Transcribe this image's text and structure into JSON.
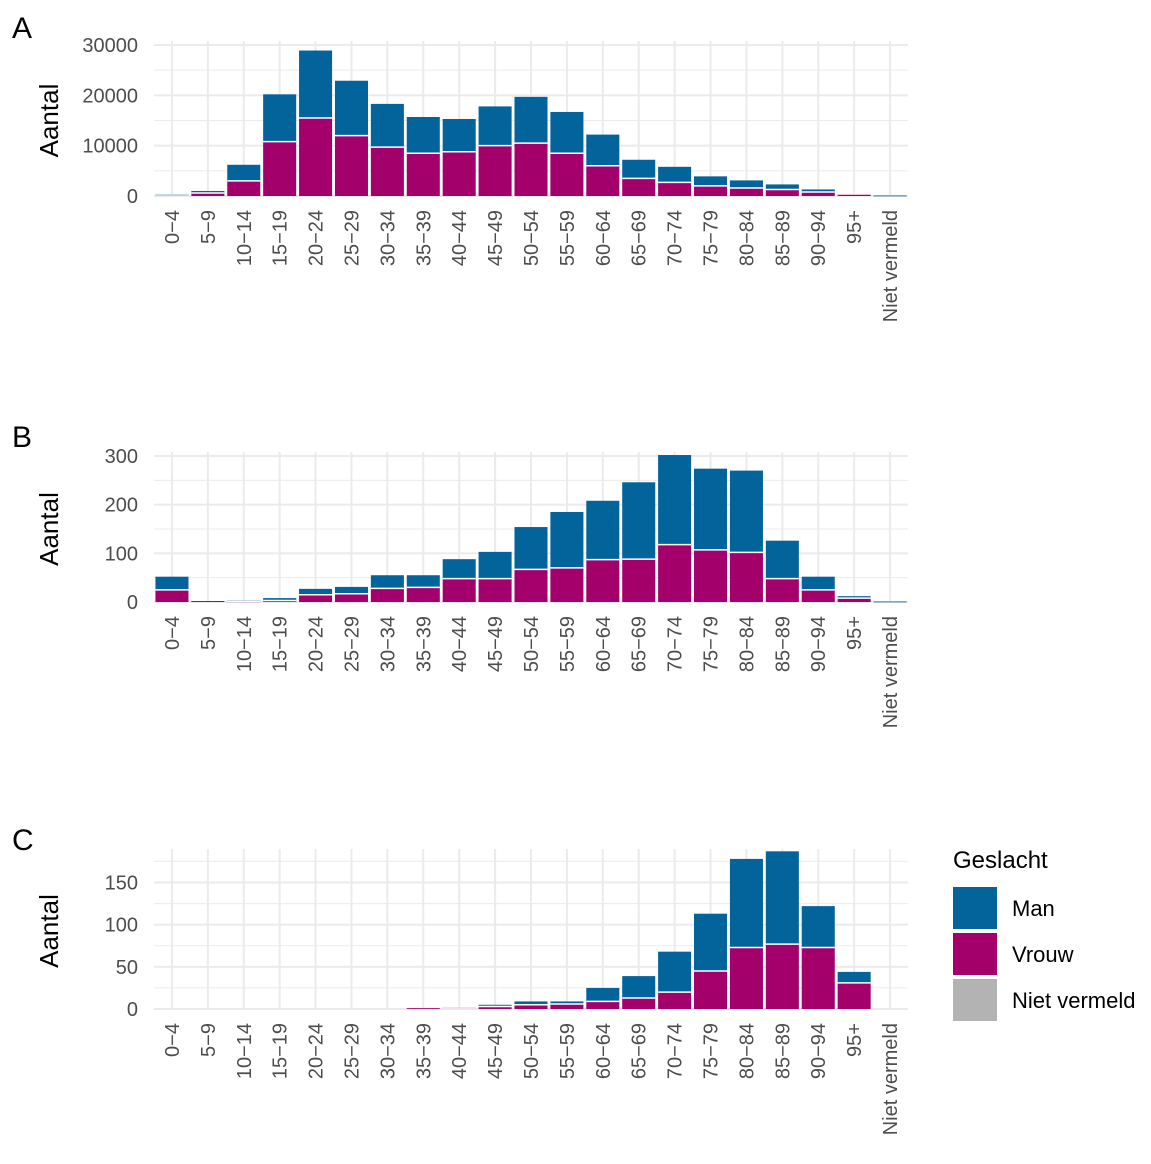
{
  "colors": {
    "man": "#02649a",
    "vrouw": "#a4006c",
    "niet_vermeld": "#b3b3b3",
    "grid": "#ebebeb"
  },
  "legend": {
    "title": "Geslacht",
    "items": [
      {
        "label": "Man",
        "color": "#02649a"
      },
      {
        "label": "Vrouw",
        "color": "#a4006c"
      },
      {
        "label": "Niet vermeld",
        "color": "#b3b3b3"
      }
    ]
  },
  "chart_data": [
    {
      "type": "bar",
      "stacked": true,
      "panel": "A",
      "ylabel": "Aantal",
      "ylim": [
        0,
        30000
      ],
      "yticks": [
        0,
        10000,
        20000,
        30000
      ],
      "categories": [
        "0−4",
        "5−9",
        "10−14",
        "15−19",
        "20−24",
        "25−29",
        "30−34",
        "35−39",
        "40−44",
        "45−49",
        "50−54",
        "55−59",
        "60−64",
        "65−69",
        "70−74",
        "75−79",
        "80−84",
        "85−89",
        "90−94",
        "95+",
        "Niet vermeld"
      ],
      "series": [
        {
          "name": "Vrouw",
          "values": [
            200,
            600,
            3000,
            10800,
            15500,
            12000,
            9700,
            8500,
            8800,
            10000,
            10500,
            8500,
            6000,
            3500,
            2700,
            2000,
            1600,
            1300,
            800,
            400,
            0
          ]
        },
        {
          "name": "Man",
          "values": [
            200,
            400,
            3200,
            9400,
            13400,
            10900,
            8600,
            7200,
            6500,
            7800,
            9200,
            8200,
            6200,
            3700,
            3100,
            1900,
            1500,
            1000,
            500,
            100,
            100
          ]
        },
        {
          "name": "Niet vermeld",
          "values": [
            0,
            0,
            0,
            0,
            0,
            0,
            0,
            0,
            0,
            0,
            0,
            0,
            0,
            0,
            0,
            0,
            0,
            0,
            0,
            0,
            0
          ]
        }
      ]
    },
    {
      "type": "bar",
      "stacked": true,
      "panel": "B",
      "ylabel": "Aantal",
      "ylim": [
        0,
        300
      ],
      "yticks": [
        0,
        100,
        200,
        300
      ],
      "categories": [
        "0−4",
        "5−9",
        "10−14",
        "15−19",
        "20−24",
        "25−29",
        "30−34",
        "35−39",
        "40−44",
        "45−49",
        "50−54",
        "55−59",
        "60−64",
        "65−69",
        "70−74",
        "75−79",
        "80−84",
        "85−89",
        "90−94",
        "95+",
        "Niet vermeld"
      ],
      "series": [
        {
          "name": "Vrouw",
          "values": [
            25,
            2,
            1,
            3,
            15,
            17,
            28,
            30,
            48,
            48,
            67,
            70,
            87,
            88,
            118,
            107,
            102,
            48,
            25,
            8,
            0
          ]
        },
        {
          "name": "Man",
          "values": [
            27,
            0,
            2,
            5,
            12,
            14,
            27,
            25,
            40,
            55,
            87,
            115,
            121,
            158,
            184,
            167,
            168,
            78,
            27,
            4,
            1
          ]
        },
        {
          "name": "Niet vermeld",
          "values": [
            0,
            0,
            0,
            0,
            0,
            0,
            0,
            0,
            0,
            0,
            0,
            0,
            0,
            0,
            0,
            0,
            0,
            0,
            0,
            0,
            0
          ]
        }
      ]
    },
    {
      "type": "bar",
      "stacked": true,
      "panel": "C",
      "ylabel": "Aantal",
      "ylim": [
        0,
        185
      ],
      "yticks": [
        0,
        50,
        100,
        150
      ],
      "categories": [
        "0−4",
        "5−9",
        "10−14",
        "15−19",
        "20−24",
        "25−29",
        "30−34",
        "35−39",
        "40−44",
        "45−49",
        "50−54",
        "55−59",
        "60−64",
        "65−69",
        "70−74",
        "75−79",
        "80−84",
        "85−89",
        "90−94",
        "95+",
        "Niet vermeld"
      ],
      "series": [
        {
          "name": "Vrouw",
          "values": [
            0,
            0,
            0,
            0,
            0,
            0,
            0,
            1,
            1,
            3,
            5,
            6,
            9,
            13,
            20,
            45,
            73,
            77,
            73,
            31,
            0
          ]
        },
        {
          "name": "Man",
          "values": [
            0,
            0,
            0,
            0,
            0,
            0,
            0,
            0,
            1,
            2,
            4,
            3,
            16,
            26,
            48,
            68,
            105,
            110,
            49,
            13,
            0
          ]
        },
        {
          "name": "Niet vermeld",
          "values": [
            0,
            0,
            0,
            0,
            0,
            0,
            0,
            0,
            0,
            0,
            0,
            0,
            0,
            0,
            0,
            0,
            0,
            0,
            0,
            0,
            0
          ]
        }
      ]
    }
  ]
}
